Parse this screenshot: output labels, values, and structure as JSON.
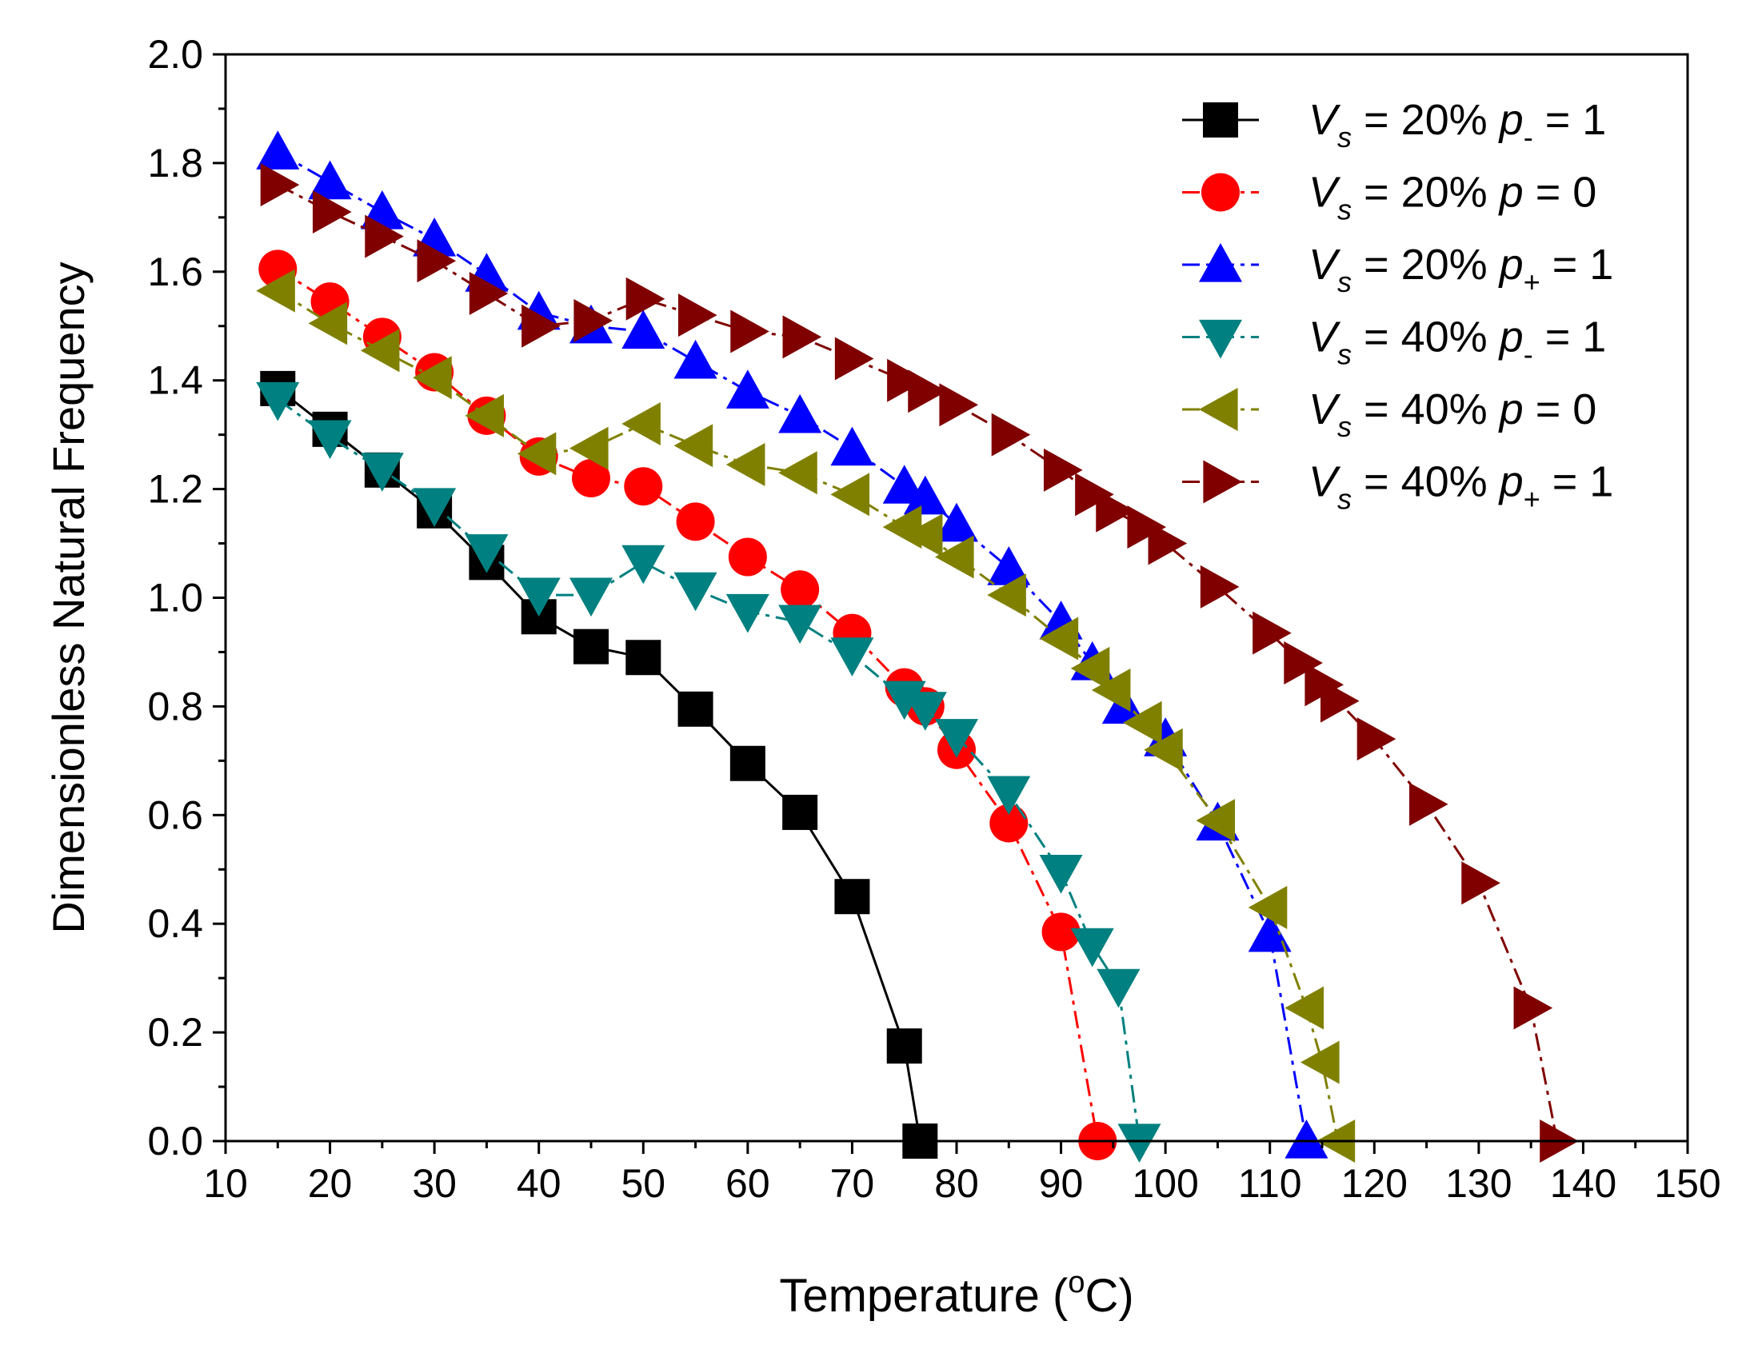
{
  "chart_data": {
    "type": "line",
    "title": "",
    "xlabel": "Temperature (°C)",
    "xlabel_parts": {
      "pre": "Temperature (",
      "sup": "o",
      "post": "C)"
    },
    "ylabel": "Dimensionless Natural Frequency",
    "xlim": [
      10,
      150
    ],
    "ylim": [
      0.0,
      2.0
    ],
    "xticks": [
      10,
      20,
      30,
      40,
      50,
      60,
      70,
      80,
      90,
      100,
      110,
      120,
      130,
      140,
      150
    ],
    "yticks": [
      0.0,
      0.2,
      0.4,
      0.6,
      0.8,
      1.0,
      1.2,
      1.4,
      1.6,
      1.8,
      2.0
    ],
    "xtick_labels": [
      "10",
      "20",
      "30",
      "40",
      "50",
      "60",
      "70",
      "80",
      "90",
      "100",
      "110",
      "120",
      "130",
      "140",
      "150"
    ],
    "ytick_labels": [
      "0.0",
      "0.2",
      "0.4",
      "0.6",
      "0.8",
      "1.0",
      "1.2",
      "1.4",
      "1.6",
      "1.8",
      "2.0"
    ],
    "grid": false,
    "legend_position": "top-right",
    "series": [
      {
        "name": "Vs = 20%  p- = 1",
        "legend": {
          "v": "V",
          "vsub": "s",
          "eq": " = 20%  ",
          "p": "p",
          "psub": "-",
          "val": " = 1"
        },
        "color": "#000000",
        "marker": "square",
        "dash": "solid",
        "x": [
          15,
          20,
          25,
          30,
          35,
          40,
          45,
          50,
          55,
          60,
          65,
          70,
          75,
          76.5
        ],
        "y": [
          1.385,
          1.31,
          1.235,
          1.16,
          1.065,
          0.965,
          0.91,
          0.89,
          0.795,
          0.695,
          0.605,
          0.45,
          0.175,
          0.0
        ]
      },
      {
        "name": "Vs = 20%  p = 0",
        "legend": {
          "v": "V",
          "vsub": "s",
          "eq": " = 20%  ",
          "p": "p",
          "psub": "",
          "val": " = 0"
        },
        "color": "#ff0000",
        "marker": "circle",
        "dash": "dashdot",
        "x": [
          15,
          20,
          25,
          30,
          35,
          40,
          45,
          50,
          55,
          60,
          65,
          70,
          75,
          77,
          80,
          85,
          90,
          93.5
        ],
        "y": [
          1.605,
          1.545,
          1.48,
          1.415,
          1.335,
          1.26,
          1.22,
          1.205,
          1.14,
          1.075,
          1.015,
          0.935,
          0.835,
          0.8,
          0.72,
          0.585,
          0.385,
          0.0
        ]
      },
      {
        "name": "Vs = 20%  p+ = 1",
        "legend": {
          "v": "V",
          "vsub": "s",
          "eq": " = 20%  ",
          "p": "p",
          "psub": "+",
          "val": " = 1"
        },
        "color": "#0000ff",
        "marker": "triangle-up",
        "dash": "dashdot",
        "x": [
          15,
          20,
          25,
          30,
          35,
          40,
          45,
          50,
          55,
          60,
          65,
          70,
          75,
          77,
          80,
          85,
          90,
          93,
          96,
          100,
          105,
          110,
          113.5
        ],
        "y": [
          1.82,
          1.765,
          1.71,
          1.66,
          1.595,
          1.525,
          1.5,
          1.49,
          1.435,
          1.38,
          1.335,
          1.275,
          1.205,
          1.185,
          1.135,
          1.055,
          0.955,
          0.88,
          0.8,
          0.74,
          0.585,
          0.38,
          0.0
        ]
      },
      {
        "name": "Vs = 40%  p- = 1",
        "legend": {
          "v": "V",
          "vsub": "s",
          "eq": " = 40%  ",
          "p": "p",
          "psub": "-",
          "val": " = 1"
        },
        "color": "#008080",
        "marker": "triangle-down",
        "dash": "dashdot",
        "x": [
          15,
          20,
          25,
          30,
          35,
          40,
          45,
          50,
          55,
          60,
          65,
          70,
          75,
          77,
          80,
          85,
          90,
          93,
          95.5,
          97.5
        ],
        "y": [
          1.365,
          1.295,
          1.235,
          1.17,
          1.085,
          1.005,
          1.005,
          1.065,
          1.015,
          0.975,
          0.955,
          0.895,
          0.815,
          0.795,
          0.745,
          0.64,
          0.495,
          0.36,
          0.285,
          0.0
        ]
      },
      {
        "name": "Vs = 40%  p = 0",
        "legend": {
          "v": "V",
          "vsub": "s",
          "eq": " = 40%  ",
          "p": "p",
          "psub": "",
          "val": " = 0"
        },
        "color": "#808000",
        "marker": "triangle-left",
        "dash": "dashdot",
        "x": [
          15,
          20,
          25,
          30,
          35,
          40,
          45,
          50,
          55,
          60,
          65,
          70,
          75,
          77,
          80,
          85,
          90,
          93,
          95,
          98,
          100,
          105,
          110,
          113.5,
          115,
          116.5
        ],
        "y": [
          1.565,
          1.505,
          1.455,
          1.405,
          1.335,
          1.265,
          1.275,
          1.32,
          1.28,
          1.245,
          1.23,
          1.19,
          1.13,
          1.115,
          1.075,
          1.005,
          0.925,
          0.87,
          0.83,
          0.77,
          0.72,
          0.59,
          0.43,
          0.245,
          0.145,
          0.0
        ]
      },
      {
        "name": "Vs = 40%  p+ = 1",
        "legend": {
          "v": "V",
          "vsub": "s",
          "eq": " = 40%  ",
          "p": "p",
          "psub": "+",
          "val": " = 1"
        },
        "color": "#800000",
        "marker": "triangle-right",
        "dash": "dashdot",
        "x": [
          15,
          20,
          25,
          30,
          35,
          40,
          45,
          50,
          55,
          60,
          65,
          70,
          75,
          77,
          80,
          85,
          90,
          93,
          95,
          98,
          100,
          105,
          110,
          113,
          115,
          116.5,
          120,
          125,
          130,
          135,
          137.5
        ],
        "y": [
          1.76,
          1.71,
          1.665,
          1.62,
          1.56,
          1.5,
          1.51,
          1.55,
          1.52,
          1.49,
          1.48,
          1.44,
          1.4,
          1.38,
          1.355,
          1.3,
          1.235,
          1.19,
          1.16,
          1.13,
          1.1,
          1.02,
          0.935,
          0.88,
          0.84,
          0.81,
          0.74,
          0.62,
          0.475,
          0.245,
          0.0
        ]
      }
    ]
  }
}
